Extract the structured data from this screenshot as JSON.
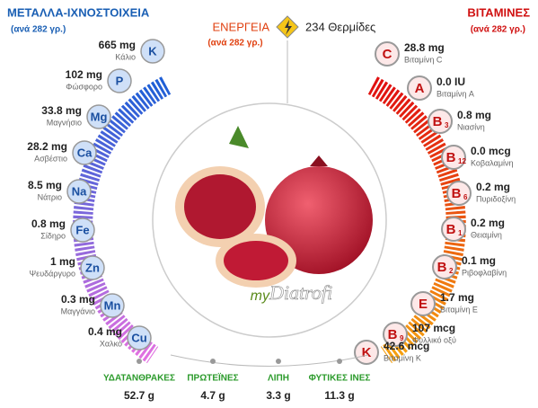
{
  "minerals": {
    "title": "ΜΕΤΑΛΛΑ-ΙΧΝΟΣΤΟΙΧΕΙΑ",
    "subtitle": "(ανά 282 γρ.)",
    "items": [
      {
        "symbol": "K",
        "value": "665 mg",
        "name": "Κάλιο"
      },
      {
        "symbol": "P",
        "value": "102 mg",
        "name": "Φώσφορο"
      },
      {
        "symbol": "Mg",
        "value": "33.8 mg",
        "name": "Μαγνήσιο"
      },
      {
        "symbol": "Ca",
        "value": "28.2 mg",
        "name": "Ασβέστιο"
      },
      {
        "symbol": "Na",
        "value": "8.5 mg",
        "name": "Νάτριο"
      },
      {
        "symbol": "Fe",
        "value": "0.8 mg",
        "name": "Σίδηρο"
      },
      {
        "symbol": "Zn",
        "value": "1 mg",
        "name": "Ψευδάργυρο"
      },
      {
        "symbol": "Mn",
        "value": "0.3 mg",
        "name": "Μαγγάνιο"
      },
      {
        "symbol": "Cu",
        "value": "0.4 mg",
        "name": "Χαλκό"
      }
    ]
  },
  "vitamins": {
    "title": "ΒΙΤΑΜΙΝΕΣ",
    "subtitle": "(ανά 282 γρ.)",
    "items": [
      {
        "symbol": "C",
        "value": "28.8 mg",
        "name": "Βιταμίνη C"
      },
      {
        "symbol": "A",
        "value": "0.0 IU",
        "name": "Βιταμίνη A"
      },
      {
        "symbol": "B",
        "sub": "3",
        "value": "0.8 mg",
        "name": "Νιασίνη"
      },
      {
        "symbol": "B",
        "sub": "12",
        "value": "0.0 mcg",
        "name": "Κοβαλαμίνη"
      },
      {
        "symbol": "B",
        "sub": "6",
        "value": "0.2 mg",
        "name": "Πυριδοξίνη"
      },
      {
        "symbol": "B",
        "sub": "1",
        "value": "0.2 mg",
        "name": "Θειαμίνη"
      },
      {
        "symbol": "B",
        "sub": "2",
        "value": "0.1 mg",
        "name": "Ριβοφλαβίνη"
      },
      {
        "symbol": "E",
        "value": "1.7 mg",
        "name": "Βιταμίνη E"
      },
      {
        "symbol": "B",
        "sub": "9",
        "value": "107 mcg",
        "name": "Φυλλικό οξύ"
      },
      {
        "symbol": "K",
        "value": "42.6 mcg",
        "name": "Βιταμίνη K"
      }
    ]
  },
  "energy": {
    "label": "ΕΝΕΡΓΕΙΑ",
    "subtitle": "(ανά 282 γρ.)",
    "value": "234 Θερμίδες"
  },
  "macros": [
    {
      "label": "ΥΔΑΤΑΝΘΡΑΚΕΣ",
      "value": "52.7 g"
    },
    {
      "label": "ΠΡΩΤΕΪΝΕΣ",
      "value": "4.7 g"
    },
    {
      "label": "ΛΙΠΗ",
      "value": "3.3 g"
    },
    {
      "label": "ΦΥΤΙΚΕΣ ΙΝΕΣ",
      "value": "11.3 g"
    }
  ],
  "logo": {
    "prefix": "my",
    "name": "Diatrofi"
  }
}
